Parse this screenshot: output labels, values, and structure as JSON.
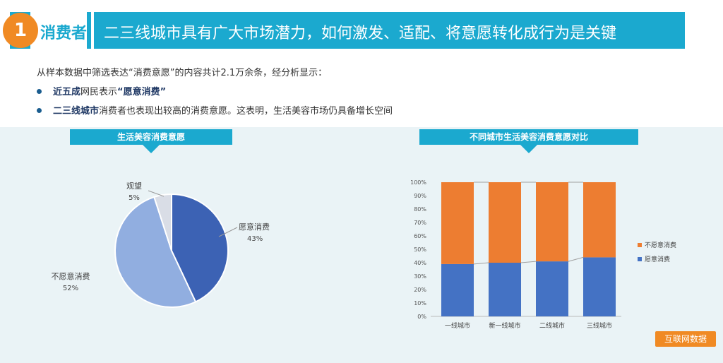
{
  "header": {
    "number": "1",
    "tag": "消费者",
    "title": "二三线城市具有广大市场潜力，如何激发、适配、将意愿转化成行为是关键"
  },
  "intro": {
    "line": "从样本数据中筛选表达“消费意愿”的内容共计2.1万余条，经分析显示：",
    "bullets": [
      {
        "bold": "近五成",
        "text": "网民表示",
        "bold2": "“愿意消费”",
        "text2": ""
      },
      {
        "bold": "二三线城市",
        "text": "消费者也表现出较高的消费意愿。这表明，生活美容市场仍具备增长空间",
        "bold2": "",
        "text2": ""
      }
    ]
  },
  "colors": {
    "header": "#1ba9cf",
    "accent": "#f08a24",
    "pie_willing": "#3c62b4",
    "pie_unwilling": "#91aee0",
    "pie_watch": "#d9dde6",
    "bar_willing": "#4472c4",
    "bar_unwilling": "#ed7d31"
  },
  "source_label": "互联网数据",
  "chart_data": [
    {
      "type": "pie",
      "title": "生活美容消费意愿",
      "slices": [
        {
          "label": "愿意消费",
          "value": 43,
          "value_label": "43%"
        },
        {
          "label": "不愿意消费",
          "value": 52,
          "value_label": "52%"
        },
        {
          "label": "观望",
          "value": 5,
          "value_label": "5%"
        }
      ]
    },
    {
      "type": "bar",
      "stacked": true,
      "title": "不同城市生活美容消费意愿对比",
      "categories": [
        "一线城市",
        "新一线城市",
        "二线城市",
        "三线城市"
      ],
      "series": [
        {
          "name": "愿意消费",
          "values": [
            39,
            40,
            41,
            44
          ]
        },
        {
          "name": "不愿意消费",
          "values": [
            61,
            60,
            59,
            56
          ]
        }
      ],
      "ylim": [
        0,
        100
      ],
      "yticks": [
        "0%",
        "10%",
        "20%",
        "30%",
        "40%",
        "50%",
        "60%",
        "70%",
        "80%",
        "90%",
        "100%"
      ],
      "legend": "right"
    }
  ]
}
